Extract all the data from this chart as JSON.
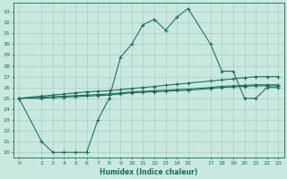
{
  "xlabel": "Humidex (Indice chaleur)",
  "bg_color": "#c8e8e0",
  "line_color": "#1a6b5a",
  "grid_color": "#a8ccc8",
  "xlim": [
    -0.5,
    23.5
  ],
  "ylim": [
    19.5,
    33.8
  ],
  "yticks": [
    20,
    21,
    22,
    23,
    24,
    25,
    26,
    27,
    28,
    29,
    30,
    31,
    32,
    33
  ],
  "xticks": [
    0,
    2,
    3,
    4,
    5,
    6,
    7,
    8,
    9,
    10,
    11,
    12,
    13,
    14,
    15,
    17,
    18,
    19,
    20,
    21,
    22,
    23
  ],
  "line1_x": [
    0,
    2,
    3,
    4,
    5,
    6,
    7,
    8,
    9,
    10,
    11,
    12,
    13,
    14,
    15,
    17,
    18,
    19,
    20,
    21,
    22,
    23
  ],
  "line1_y": [
    25,
    21,
    20,
    20,
    20,
    20,
    23,
    25,
    28.8,
    30.0,
    31.8,
    32.3,
    31.3,
    32.5,
    33.3,
    30.0,
    27.5,
    27.5,
    25.0,
    25.0,
    26.0,
    26.0
  ],
  "line2_x": [
    0,
    2,
    3,
    4,
    5,
    6,
    7,
    8,
    9,
    10,
    11,
    12,
    13,
    14,
    15,
    17,
    18,
    19,
    20,
    21,
    22,
    23
  ],
  "line2_y": [
    25.0,
    25.2,
    25.3,
    25.4,
    25.5,
    25.6,
    25.65,
    25.7,
    25.8,
    25.9,
    26.0,
    26.1,
    26.2,
    26.3,
    26.4,
    26.6,
    26.7,
    26.8,
    26.9,
    27.0,
    27.0,
    27.0
  ],
  "line3_x": [
    0,
    2,
    3,
    4,
    5,
    6,
    7,
    8,
    9,
    10,
    11,
    12,
    13,
    14,
    15,
    17,
    18,
    19,
    20,
    21,
    22,
    23
  ],
  "line3_y": [
    25.0,
    25.1,
    25.15,
    25.2,
    25.25,
    25.3,
    25.35,
    25.4,
    25.5,
    25.6,
    25.65,
    25.7,
    25.75,
    25.8,
    25.85,
    26.0,
    26.1,
    26.15,
    26.2,
    26.25,
    26.25,
    26.25
  ],
  "line4_x": [
    0,
    2,
    3,
    4,
    5,
    6,
    7,
    8,
    9,
    10,
    11,
    12,
    13,
    14,
    15,
    17,
    18,
    19,
    20,
    21,
    22,
    23
  ],
  "line4_y": [
    25.0,
    25.0,
    25.05,
    25.1,
    25.15,
    25.2,
    25.25,
    25.3,
    25.4,
    25.5,
    25.55,
    25.6,
    25.65,
    25.7,
    25.75,
    25.9,
    26.0,
    26.05,
    26.1,
    26.15,
    26.15,
    26.15
  ]
}
